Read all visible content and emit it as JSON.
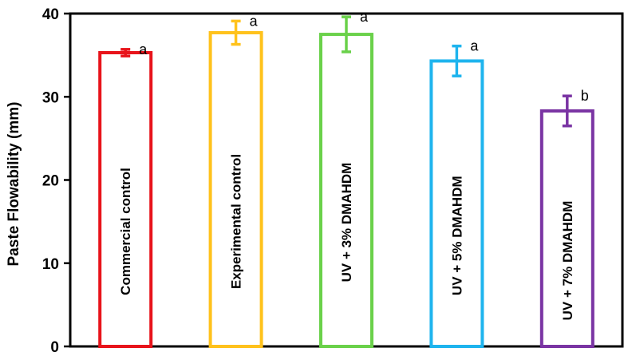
{
  "chart_data": {
    "type": "bar",
    "title": "",
    "xlabel": "",
    "ylabel": "Paste Flowability (mm)",
    "ylim": [
      0,
      40
    ],
    "yticks": [
      0,
      10,
      20,
      30,
      40
    ],
    "grid": false,
    "legend": "none",
    "categories": [
      "Commercial control",
      "Experimental control",
      "UV + 3% DMAHDM",
      "UV + 5% DMAHDM",
      "UV + 7% DMAHDM"
    ],
    "values": [
      35.3,
      37.7,
      37.5,
      34.3,
      28.3
    ],
    "errors": [
      0.4,
      1.4,
      2.1,
      1.8,
      1.8
    ],
    "significance": [
      "a",
      "a",
      "a",
      "a",
      "b"
    ],
    "colors": [
      "#e8141b",
      "#ffc21c",
      "#6ad14a",
      "#1eb4ee",
      "#7a34a3"
    ]
  }
}
